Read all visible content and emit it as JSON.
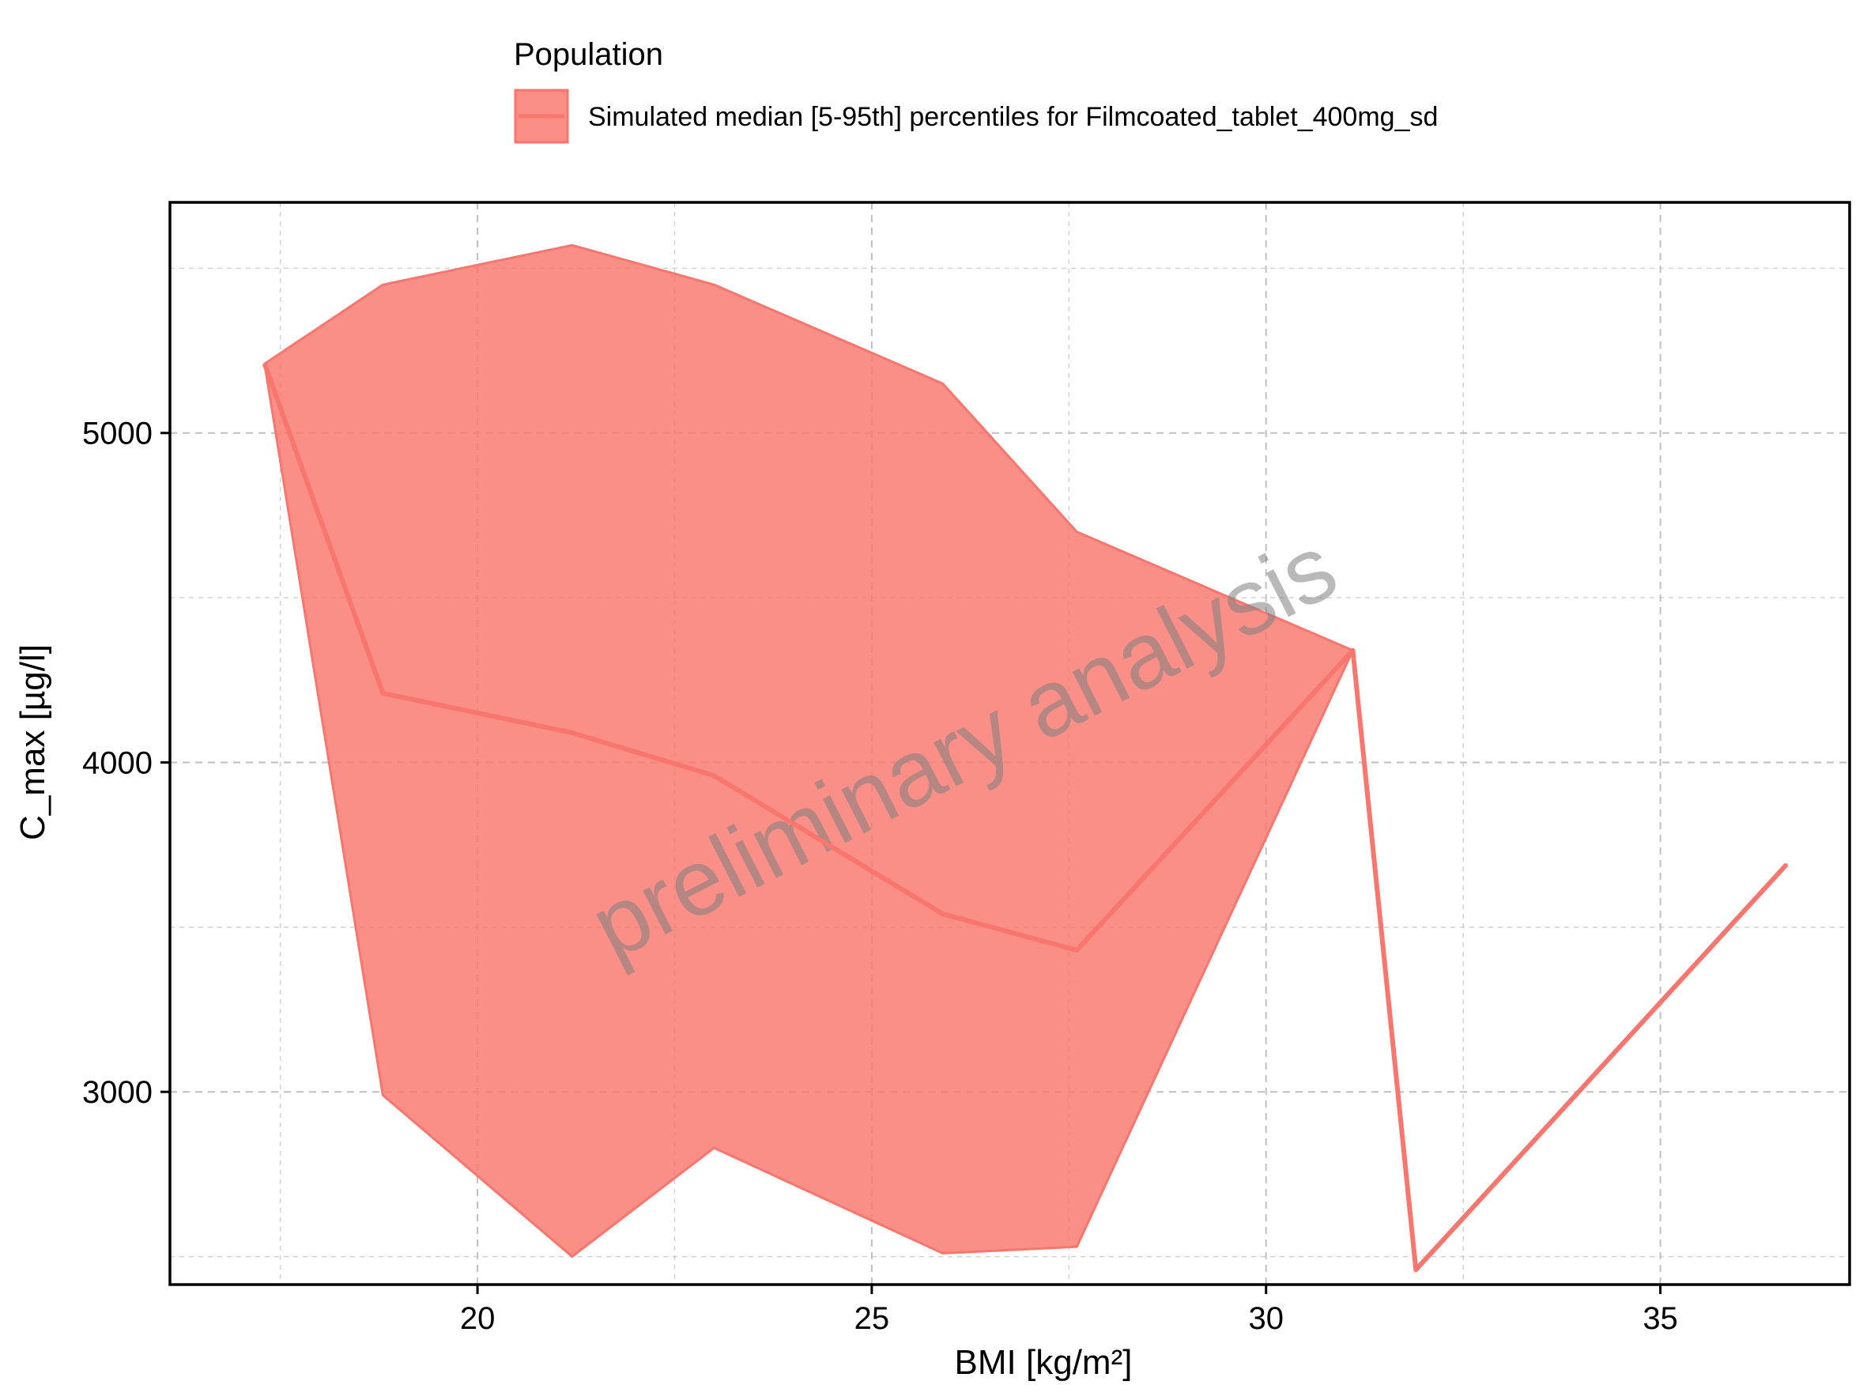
{
  "chart_data": {
    "type": "area",
    "title": "",
    "xlabel": "BMI [kg/m²]",
    "ylabel": "C_max [µg/l]",
    "xlim": [
      16.1,
      37.4
    ],
    "ylim": [
      2415,
      5700
    ],
    "x_ticks": [
      20,
      25,
      30,
      35
    ],
    "x_tick_labels": [
      "20",
      "25",
      "30",
      "35"
    ],
    "y_ticks": [
      3000,
      4000,
      5000
    ],
    "y_tick_labels": [
      "3000",
      "4000",
      "5000"
    ],
    "x_minor_ticks": [
      17.5,
      22.5,
      27.5,
      32.5,
      37.5
    ],
    "y_minor_ticks": [
      2500,
      3500,
      4500,
      5500
    ],
    "grid": true,
    "legend": {
      "title": "Population",
      "position": "top",
      "entries": [
        "Simulated median [5-95th] percentiles for Filmcoated_tablet_400mg_sd"
      ]
    },
    "watermark": "preliminary analysis",
    "series": [
      {
        "name": "Simulated median [5-95th] percentiles for Filmcoated_tablet_400mg_sd",
        "x": [
          17.3,
          18.8,
          21.2,
          23.0,
          25.9,
          27.6,
          31.1,
          31.9,
          36.6
        ],
        "median": [
          5210,
          4210,
          4090,
          3960,
          3540,
          3430,
          4340,
          2460,
          3690
        ],
        "p5": [
          5210,
          2990,
          2500,
          2830,
          2510,
          2530,
          4340,
          2460,
          3690
        ],
        "p95": [
          5210,
          5450,
          5570,
          5450,
          5150,
          4700,
          4340,
          2460,
          3690
        ]
      }
    ]
  },
  "colors": {
    "ribbon_fill": "#f8766d",
    "line": "#f8766d",
    "grid": "#bfbfbf",
    "watermark": "#7f7f7f"
  }
}
